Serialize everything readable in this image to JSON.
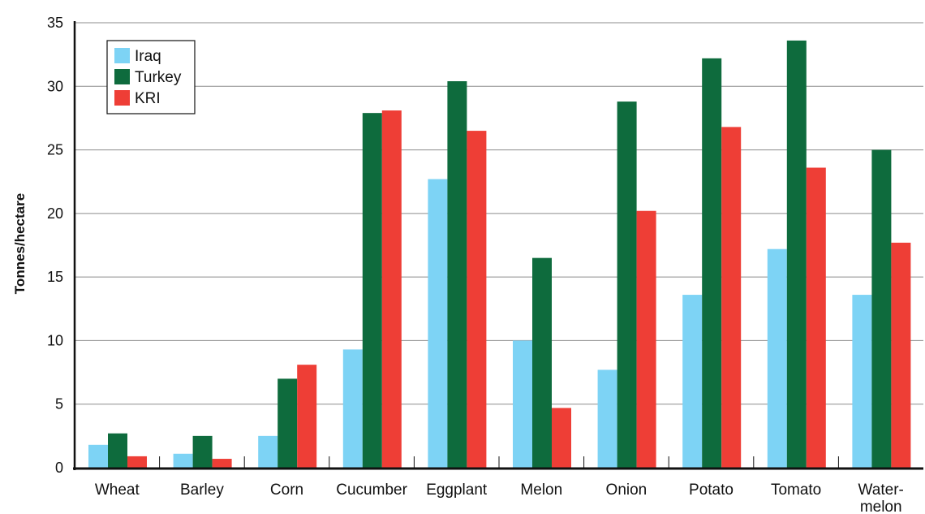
{
  "chart_data": {
    "type": "bar",
    "ylabel": "Tonnes/hectare",
    "xlabel": "",
    "ylim": [
      0,
      35
    ],
    "yticks": [
      0,
      5,
      10,
      15,
      20,
      25,
      30,
      35
    ],
    "grid": "horizontal",
    "legend_position": "top-left",
    "categories": [
      [
        "Wheat"
      ],
      [
        "Barley"
      ],
      [
        "Corn"
      ],
      [
        "Cucumber"
      ],
      [
        "Eggplant"
      ],
      [
        "Melon"
      ],
      [
        "Onion"
      ],
      [
        "Potato"
      ],
      [
        "Tomato"
      ],
      [
        "Water-",
        "melon"
      ]
    ],
    "series": [
      {
        "name": "Iraq",
        "color": "#7dd3f5",
        "values": [
          1.8,
          1.1,
          2.5,
          9.3,
          22.7,
          10.0,
          7.7,
          13.6,
          17.2,
          13.6
        ]
      },
      {
        "name": "Turkey",
        "color": "#0e6b3d",
        "values": [
          2.7,
          2.5,
          7.0,
          27.9,
          30.4,
          16.5,
          28.8,
          32.2,
          33.6,
          25.0
        ]
      },
      {
        "name": "KRI",
        "color": "#ee3e36",
        "values": [
          0.9,
          0.7,
          8.1,
          28.1,
          26.5,
          4.7,
          20.2,
          26.8,
          23.6,
          17.7
        ]
      }
    ]
  }
}
